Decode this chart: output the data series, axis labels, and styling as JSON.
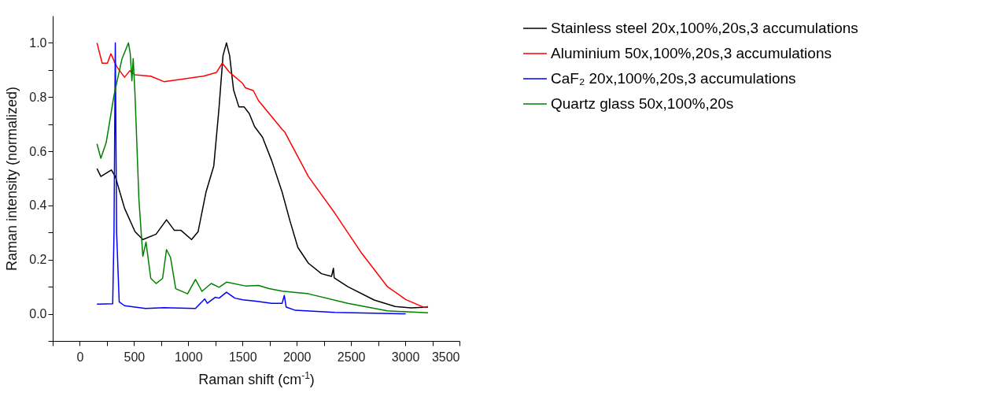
{
  "chart_data": {
    "type": "line",
    "xlabel": "Raman shift (cm$^{-1}$)",
    "ylabel": "Raman intensity (normalized)",
    "xlim": [
      -250,
      3500
    ],
    "ylim": [
      -0.1,
      1.1
    ],
    "xticks": [
      {
        "value": -250,
        "label": null
      },
      0,
      {
        "value": 250,
        "label": null
      },
      500,
      {
        "value": 750,
        "label": null
      },
      1000,
      {
        "value": 1250,
        "label": null
      },
      1500,
      {
        "value": 1750,
        "label": null
      },
      2000,
      {
        "value": 2250,
        "label": null
      },
      2500,
      {
        "value": 2750,
        "label": null
      },
      3000,
      {
        "value": 3250,
        "label": null
      },
      3500
    ],
    "yticks": [
      {
        "value": -0.1,
        "label": null
      },
      {
        "value": 0,
        "label": "0.0"
      },
      {
        "value": 0.1,
        "label": null
      },
      0.2,
      {
        "value": 0.3,
        "label": null
      },
      0.4,
      {
        "value": 0.5,
        "label": null
      },
      0.6,
      {
        "value": 0.7,
        "label": null
      },
      0.8,
      {
        "value": 0.9,
        "label": null
      },
      {
        "value": 1,
        "label": "1.0"
      }
    ],
    "grid": false,
    "legend": "top right",
    "marker": "none",
    "line_style": "solid",
    "series": [
      {
        "name": "Stainless steel 20x,100%,20s,3 accumulations",
        "color": "#000000",
        "x": [
          158,
          194,
          291,
          327,
          412,
          509,
          581,
          703,
          799,
          872,
          933,
          1030,
          1090,
          1163,
          1235,
          1283,
          1320,
          1352,
          1381,
          1417,
          1466,
          1514,
          1562,
          1611,
          1684,
          1769,
          1865,
          1938,
          2010,
          2107,
          2228,
          2320,
          2338,
          2345,
          2471,
          2713,
          2907,
          3052,
          3210
        ],
        "values": [
          0.536,
          0.507,
          0.531,
          0.507,
          0.39,
          0.303,
          0.274,
          0.294,
          0.347,
          0.308,
          0.308,
          0.274,
          0.303,
          0.449,
          0.546,
          0.759,
          0.953,
          1.0,
          0.953,
          0.827,
          0.764,
          0.764,
          0.739,
          0.691,
          0.652,
          0.565,
          0.449,
          0.342,
          0.245,
          0.187,
          0.148,
          0.138,
          0.168,
          0.133,
          0.1,
          0.051,
          0.027,
          0.022,
          0.025
        ]
      },
      {
        "name": "Aluminium 50x,100%,20s,3 accumulations",
        "color": "#ff0000",
        "x": [
          158,
          206,
          254,
          286,
          339,
          412,
          461,
          509,
          654,
          775,
          945,
          1139,
          1260,
          1313,
          1381,
          1502,
          1526,
          1599,
          1647,
          1865,
          1889,
          2107,
          2350,
          2592,
          2834,
          3004,
          3173,
          3210
        ],
        "values": [
          1.0,
          0.925,
          0.925,
          0.96,
          0.913,
          0.873,
          0.897,
          0.882,
          0.877,
          0.857,
          0.866,
          0.877,
          0.891,
          0.925,
          0.891,
          0.85,
          0.834,
          0.824,
          0.787,
          0.681,
          0.671,
          0.507,
          0.372,
          0.227,
          0.101,
          0.053,
          0.024,
          0.027
        ]
      },
      {
        "name": "CaF₂ 20x,100%,20s,3 accumulations",
        "color": "#0000ff",
        "x": [
          158,
          303,
          315,
          327,
          339,
          363,
          412,
          606,
          775,
          1066,
          1151,
          1175,
          1248,
          1284,
          1352,
          1429,
          1502,
          1623,
          1769,
          1865,
          1885,
          1902,
          1987,
          2350,
          3004
        ],
        "values": [
          0.036,
          0.037,
          0.3,
          1.0,
          0.3,
          0.044,
          0.03,
          0.02,
          0.023,
          0.02,
          0.055,
          0.039,
          0.061,
          0.058,
          0.08,
          0.058,
          0.052,
          0.047,
          0.039,
          0.039,
          0.068,
          0.025,
          0.013,
          0.005,
          0.0
        ]
      },
      {
        "name": "Quartz glass 50x,100%,20s",
        "color": "#008000",
        "x": [
          158,
          194,
          243,
          315,
          388,
          448,
          465,
          480,
          492,
          509,
          545,
          581,
          610,
          654,
          703,
          763,
          799,
          836,
          884,
          993,
          1066,
          1126,
          1211,
          1284,
          1352,
          1526,
          1647,
          1744,
          1865,
          2107,
          2471,
          2834,
          3210
        ],
        "values": [
          0.627,
          0.574,
          0.632,
          0.806,
          0.94,
          1.0,
          0.96,
          0.86,
          0.942,
          0.806,
          0.42,
          0.212,
          0.265,
          0.131,
          0.112,
          0.131,
          0.237,
          0.208,
          0.093,
          0.074,
          0.127,
          0.083,
          0.112,
          0.098,
          0.117,
          0.103,
          0.105,
          0.093,
          0.084,
          0.074,
          0.039,
          0.011,
          0.004
        ]
      }
    ]
  }
}
